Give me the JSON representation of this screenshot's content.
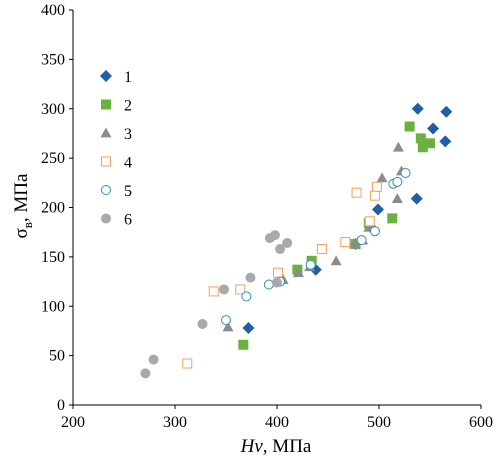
{
  "chart_data": {
    "type": "scatter",
    "title": "",
    "xlabel_italic": "Hv",
    "xlabel_rest": ", МПа",
    "ylabel_main": "σ",
    "ylabel_sub": "в",
    "ylabel_rest": ", МПа",
    "xlim": [
      200,
      600
    ],
    "ylim": [
      0,
      400
    ],
    "x_ticks": [
      200,
      300,
      400,
      500,
      600
    ],
    "y_ticks": [
      0,
      50,
      100,
      150,
      200,
      250,
      300,
      350,
      400
    ],
    "grid": false,
    "legend_position": "upper-left",
    "series": [
      {
        "name": "1",
        "marker": "diamond",
        "filled": true,
        "color": "#1f5fa3",
        "points": [
          [
            372,
            78
          ],
          [
            438,
            137
          ],
          [
            477,
            163
          ],
          [
            495,
            177
          ],
          [
            499,
            198
          ],
          [
            537,
            209
          ],
          [
            538,
            300
          ],
          [
            553,
            280
          ],
          [
            565,
            267
          ],
          [
            566,
            297
          ]
        ]
      },
      {
        "name": "2",
        "marker": "square",
        "filled": true,
        "color": "#6ab23e",
        "points": [
          [
            367,
            61
          ],
          [
            420,
            137
          ],
          [
            434,
            146
          ],
          [
            477,
            163
          ],
          [
            490,
            184
          ],
          [
            513,
            189
          ],
          [
            530,
            282
          ],
          [
            541,
            270
          ],
          [
            543,
            261
          ],
          [
            550,
            265
          ]
        ]
      },
      {
        "name": "3",
        "marker": "triangle",
        "filled": true,
        "color": "#8c8c8c",
        "points": [
          [
            352,
            79
          ],
          [
            406,
            127
          ],
          [
            421,
            134
          ],
          [
            432,
            140
          ],
          [
            458,
            146
          ],
          [
            476,
            163
          ],
          [
            484,
            167
          ],
          [
            490,
            180
          ],
          [
            503,
            230
          ],
          [
            518,
            209
          ],
          [
            519,
            261
          ],
          [
            522,
            237
          ]
        ]
      },
      {
        "name": "4",
        "marker": "square",
        "filled": false,
        "color": "#f5a15a",
        "points": [
          [
            312,
            42
          ],
          [
            338,
            115
          ],
          [
            364,
            117
          ],
          [
            401,
            134
          ],
          [
            444,
            158
          ],
          [
            467,
            165
          ],
          [
            491,
            186
          ],
          [
            496,
            212
          ],
          [
            498,
            221
          ],
          [
            478,
            215
          ]
        ]
      },
      {
        "name": "5",
        "marker": "circle",
        "filled": false,
        "color": "#2f8fc1",
        "points": [
          [
            350,
            86
          ],
          [
            370,
            110
          ],
          [
            392,
            122
          ],
          [
            403,
            125
          ],
          [
            433,
            142
          ],
          [
            483,
            167
          ],
          [
            496,
            176
          ],
          [
            514,
            224
          ],
          [
            518,
            226
          ],
          [
            526,
            235
          ]
        ]
      },
      {
        "name": "6",
        "marker": "circle",
        "filled": true,
        "color": "#a9a9a9",
        "points": [
          [
            271,
            32
          ],
          [
            279,
            46
          ],
          [
            327,
            82
          ],
          [
            348,
            117
          ],
          [
            374,
            129
          ],
          [
            393,
            169
          ],
          [
            398,
            172
          ],
          [
            400,
            124
          ],
          [
            403,
            158
          ],
          [
            410,
            164
          ]
        ]
      }
    ]
  }
}
